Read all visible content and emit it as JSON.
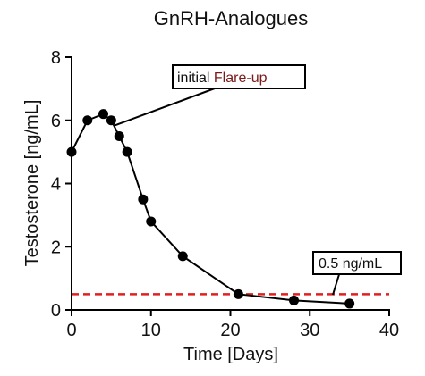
{
  "chart_data": {
    "type": "line",
    "title": "GnRH-Analogues",
    "xlabel": "Time [Days]",
    "ylabel": "Testosterone [ng/mL]",
    "xlim": [
      0,
      40
    ],
    "ylim": [
      0,
      8
    ],
    "xticks": [
      0,
      10,
      20,
      30,
      40
    ],
    "yticks": [
      0,
      2,
      4,
      6,
      8
    ],
    "grid": false,
    "series": [
      {
        "color": "#000000",
        "x": [
          0,
          2,
          4,
          5,
          6,
          7,
          9,
          10,
          14,
          21,
          28,
          35
        ],
        "y": [
          5.0,
          6.0,
          6.2,
          6.0,
          5.5,
          5.0,
          3.5,
          2.8,
          1.7,
          0.5,
          0.3,
          0.2
        ]
      }
    ],
    "reference_line": {
      "y": 0.5,
      "color": "#e02020",
      "style": "dashed",
      "label": "0.5 ng/mL"
    },
    "annotations": {
      "flare": {
        "text_prefix": "initial ",
        "text_highlight": "Flare-up",
        "highlight_color": "#7a1a1a",
        "points_to_x": 4.8,
        "points_to_y": 5.9
      }
    }
  }
}
